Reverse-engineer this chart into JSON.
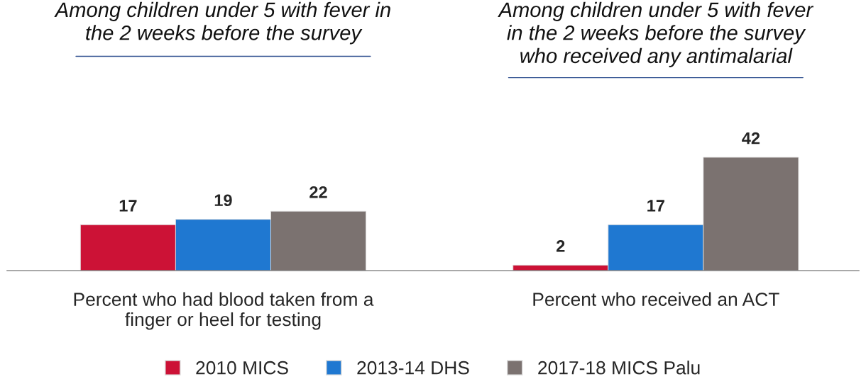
{
  "chart_data": {
    "type": "bar",
    "categories": [
      "Percent who had blood taken from a\nfinger or heel for testing",
      "Percent who received an ACT"
    ],
    "series": [
      {
        "name": "2010 MICS",
        "color": "#cc1236",
        "values": [
          17,
          2
        ]
      },
      {
        "name": "2013-14 DHS",
        "color": "#1f78d1",
        "values": [
          19,
          17
        ]
      },
      {
        "name": "2017-18 MICS Palu",
        "color": "#7b7270",
        "values": [
          22,
          42
        ]
      }
    ],
    "annotations": [
      "Among children under 5 with fever in\nthe 2 weeks before the survey",
      "Among children under 5 with fever\nin the 2 weeks before the survey\nwho received any antimalarial"
    ],
    "data_labels": true,
    "legend": "bottom",
    "relative": false
  }
}
